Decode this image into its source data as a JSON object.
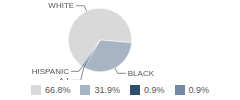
{
  "chart_data": {
    "type": "pie",
    "categories": [
      "WHITE",
      "BLACK",
      "A.I.",
      "HISPANIC"
    ],
    "values": [
      66.8,
      31.9,
      0.9,
      0.9
    ],
    "value_labels": [
      "66.8%",
      "31.9%",
      "0.9%",
      "0.9%"
    ],
    "colors": [
      "#d9d9d9",
      "#a6b4c3",
      "#2f4f6b",
      "#6f8ba3"
    ],
    "legend": "bottom"
  }
}
